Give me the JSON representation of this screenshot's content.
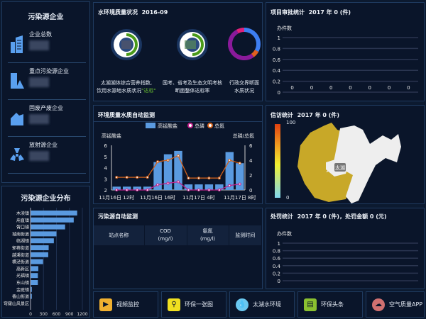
{
  "pollution_sources": {
    "title": "污染源企业",
    "items": [
      {
        "label": "企业总数",
        "icon": "buildings-icon"
      },
      {
        "label": "重点污染源企业",
        "icon": "warning-building-icon"
      },
      {
        "label": "固废产废企业",
        "icon": "factory-icon"
      },
      {
        "label": "放射源企业",
        "icon": "radiation-icon"
      }
    ]
  },
  "water_quality": {
    "title": "水环境质量状况",
    "date": "2016-09",
    "gauges": [
      {
        "line1": "太湖湖体综合营养指数,",
        "line2": "饮用水源地水质状况",
        "status": "\"达标\"",
        "color": "#4a9a1a"
      },
      {
        "line1": "国考、省考及生态文明考核",
        "line2": "断面整体达标率",
        "color": "#4a9a1a"
      },
      {
        "line1": "行政交界断面",
        "line2": "水质状况"
      }
    ],
    "ring_colors": [
      "#3d7ef2",
      "#e06020",
      "#8a1a9a",
      "#e0207a"
    ]
  },
  "colors": {
    "bar": "#5a9ae0",
    "nitrogen": "#d0601a",
    "phosphorus": "#c0208a",
    "map_fill": "#c8a828",
    "panel_border": "#1f3a5f"
  },
  "auto_monitor": {
    "title": "环境质量水质自动监测"
  },
  "source_monitor": {
    "title": "污染源自动监测",
    "columns": [
      {
        "l1": "站点名称",
        "l2": ""
      },
      {
        "l1": "COD",
        "l2": "(mg/l)"
      },
      {
        "l1": "氨氮",
        "l2": "(mg/l)"
      },
      {
        "l1": "监测时间",
        "l2": ""
      }
    ]
  },
  "project_stats": {
    "title": "项目审批统计",
    "summary": "2017 年 0 (件)"
  },
  "petition_stats": {
    "title": "信访统计",
    "summary": "2017 年 0 (件)",
    "scale_max": "100",
    "scale_min": "0",
    "map_label": "太湖"
  },
  "penalty_stats": {
    "title": "处罚统计",
    "summary": "2017 年 0 (件)，处罚金额 0 (元)"
  },
  "shortcuts": [
    {
      "label": "视频监控",
      "icon": "video-camera-icon",
      "color": "#f0b030"
    },
    {
      "label": "环保一张图",
      "icon": "map-pin-icon",
      "color": "#f0e020"
    },
    {
      "label": "太湖水环境",
      "icon": "water-drop-icon",
      "color": "#6ac8f0"
    },
    {
      "label": "环保头条",
      "icon": "news-icon",
      "color": "#8ac030"
    },
    {
      "label": "空气质量APP",
      "icon": "cloud-icon",
      "color": "#d07070"
    }
  ],
  "chart_data": [
    {
      "type": "bar",
      "orientation": "horizontal",
      "title": "污染源企业分布",
      "categories": [
        "木渎镇",
        "甪直镇",
        "胥口镇",
        "城南街道",
        "临湖镇",
        "郭巷街道",
        "越溪街道",
        "横泾街道",
        "高新区",
        "光福镇",
        "东山镇",
        "金庭镇",
        "香山街道",
        "穹窿山风景区"
      ],
      "values": [
        1080,
        1000,
        800,
        600,
        540,
        420,
        410,
        290,
        180,
        170,
        170,
        30,
        30,
        5
      ],
      "xlim": [
        0,
        1200
      ],
      "xticks": [
        "0",
        "300",
        "600",
        "900",
        "1200"
      ]
    },
    {
      "type": "bar+line",
      "legend": [
        "高锰酸盐",
        "总磷",
        "总氮"
      ],
      "legend_position": "top",
      "ylabel_left": "高锰酸盐",
      "ylabel_right": "总磷/总氮",
      "ylim_left": [
        2,
        6
      ],
      "ylim_right": [
        0,
        6
      ],
      "yticks_left": [
        "2",
        "3",
        "4",
        "5",
        "6"
      ],
      "yticks_right": [
        "0",
        "2",
        "4",
        "6"
      ],
      "xtick_labels": [
        "11月16日 12时",
        "11月16日 16时",
        "11月17日 4时",
        "11月17日 8时"
      ],
      "series": [
        {
          "name": "高锰酸盐",
          "type": "bar",
          "values": [
            2.3,
            2.3,
            2.3,
            2.3,
            4.5,
            5.2,
            5.5,
            2.5,
            2.5,
            2.5,
            2.5,
            5.4,
            4.4
          ]
        },
        {
          "name": "总磷",
          "type": "line",
          "values": [
            0,
            0,
            0,
            0,
            0.7,
            0.9,
            1.1,
            0,
            0,
            0,
            0,
            0.6,
            0.8
          ]
        },
        {
          "name": "总氮",
          "type": "line",
          "values": [
            1.7,
            1.7,
            1.7,
            1.7,
            3.8,
            4.0,
            4.6,
            1.6,
            1.6,
            1.6,
            1.6,
            4.0,
            3.6
          ]
        }
      ]
    },
    {
      "type": "bar",
      "title": "项目审批统计",
      "ylabel": "办件数",
      "ylim": [
        0,
        1
      ],
      "yticks": [
        "0",
        "0.2",
        "0.4",
        "0.6",
        "0.8",
        "1"
      ],
      "values": [
        0,
        0,
        0,
        0,
        0,
        0,
        0
      ],
      "data_labels": [
        "0",
        "0",
        "0",
        "0",
        "0",
        "0",
        "0"
      ]
    },
    {
      "type": "bar",
      "title": "处罚统计",
      "ylabel": "办件数",
      "ylim": [
        0,
        1
      ],
      "yticks": [
        "0",
        "0.2",
        "0.4",
        "0.6",
        "0.8",
        "1"
      ],
      "values": []
    }
  ]
}
